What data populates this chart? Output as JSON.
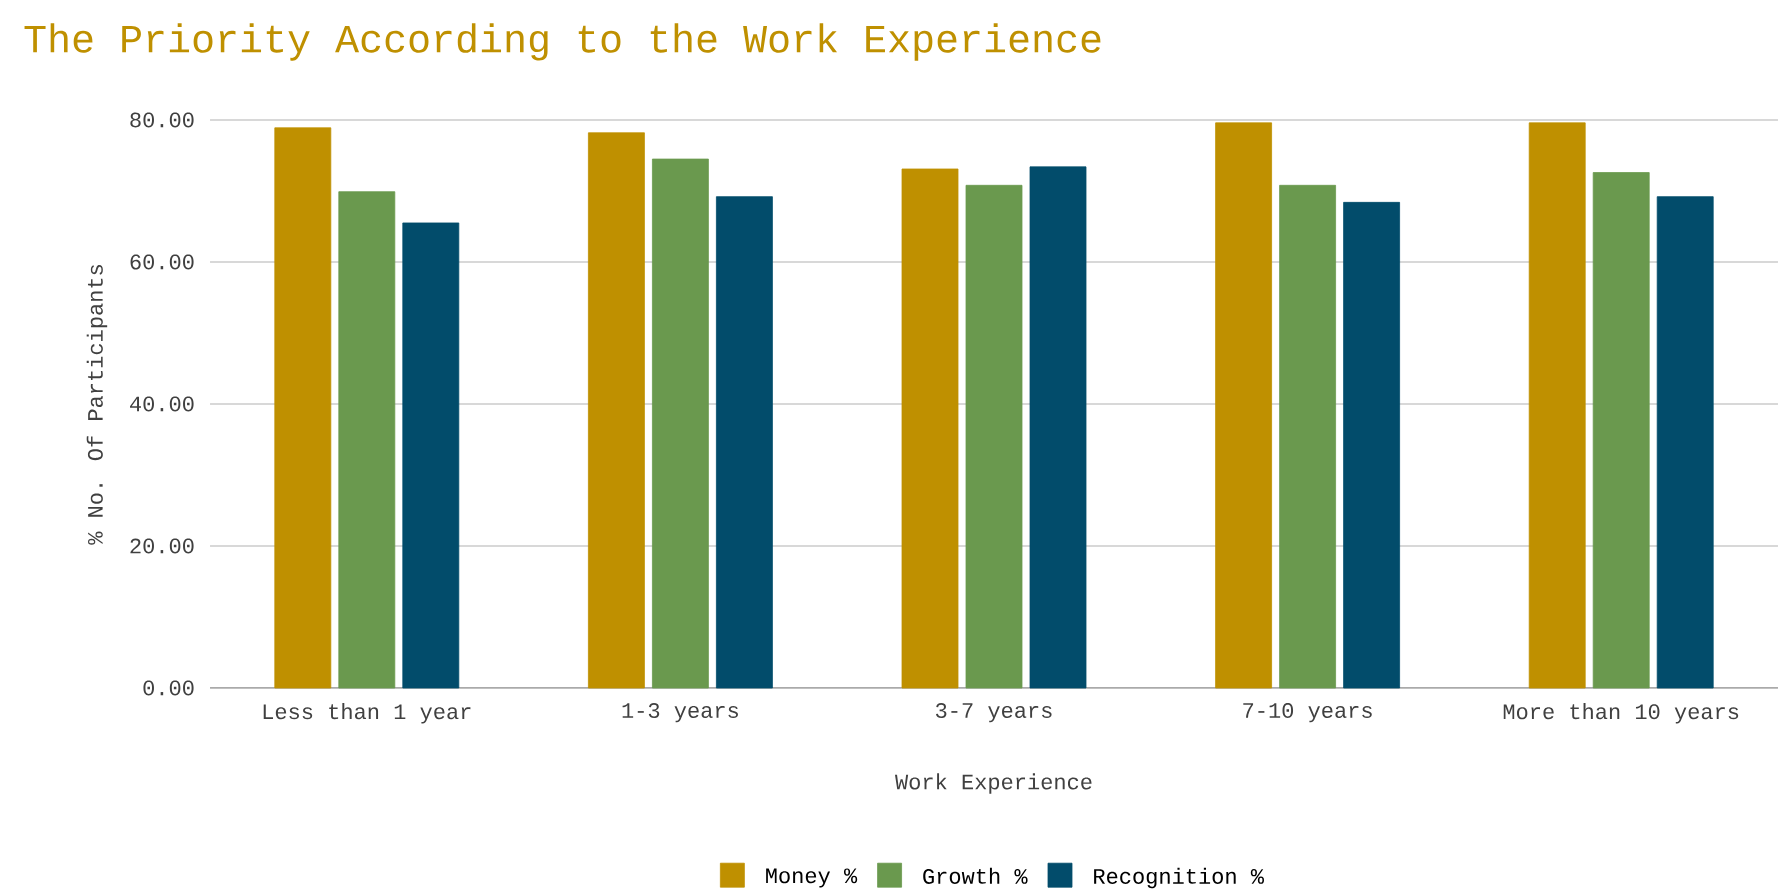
{
  "chart_data": {
    "type": "bar",
    "title": "The Priority According to the Work Experience",
    "xlabel": "Work Experience",
    "ylabel": "% No. Of Participants",
    "categories": [
      "Less than 1 year",
      "1-3 years",
      "3-7 years",
      "7-10 years",
      "More than 10 years"
    ],
    "series": [
      {
        "name": "Money %",
        "color": "#bf9000",
        "values": [
          78.9,
          78.2,
          73.1,
          79.6,
          79.6
        ]
      },
      {
        "name": "Growth %",
        "color": "#6a994e",
        "values": [
          69.9,
          74.5,
          70.8,
          70.8,
          72.6
        ]
      },
      {
        "name": "Recognition %",
        "color": "#024c6b",
        "values": [
          65.5,
          69.2,
          73.4,
          68.4,
          69.2
        ]
      }
    ],
    "ylim": [
      0,
      80
    ],
    "yticks": [
      {
        "value": 0,
        "label": "0.00"
      },
      {
        "value": 20,
        "label": "20.00"
      },
      {
        "value": 40,
        "label": "40.00"
      },
      {
        "value": 60,
        "label": "60.00"
      },
      {
        "value": 80,
        "label": "80.00"
      }
    ],
    "grid": "y",
    "legend": "bottom"
  }
}
